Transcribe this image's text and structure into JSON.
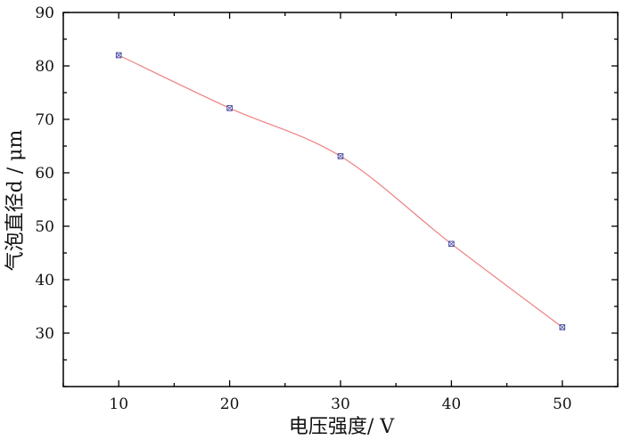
{
  "chart_data": {
    "type": "line",
    "xlabel": "电压强度/ V",
    "ylabel": "气泡直径d / μm",
    "x": [
      10,
      20,
      30,
      40,
      50
    ],
    "xlim": [
      5,
      55
    ],
    "ylim": [
      20,
      90
    ],
    "xticks": [
      10,
      20,
      30,
      40,
      50
    ],
    "xtick_labels": [
      "10",
      "20",
      "30",
      "40",
      "50"
    ],
    "yticks": [
      30,
      40,
      50,
      60,
      70,
      80,
      90
    ],
    "ytick_labels": [
      "30",
      "40",
      "50",
      "60",
      "70",
      "80",
      "90"
    ],
    "grid": false,
    "series": [
      {
        "values": [
          82,
          72.1,
          63.1,
          46.7,
          31.1
        ],
        "line_color": "#f08080",
        "marker_color": "#4a4aa0"
      }
    ]
  }
}
